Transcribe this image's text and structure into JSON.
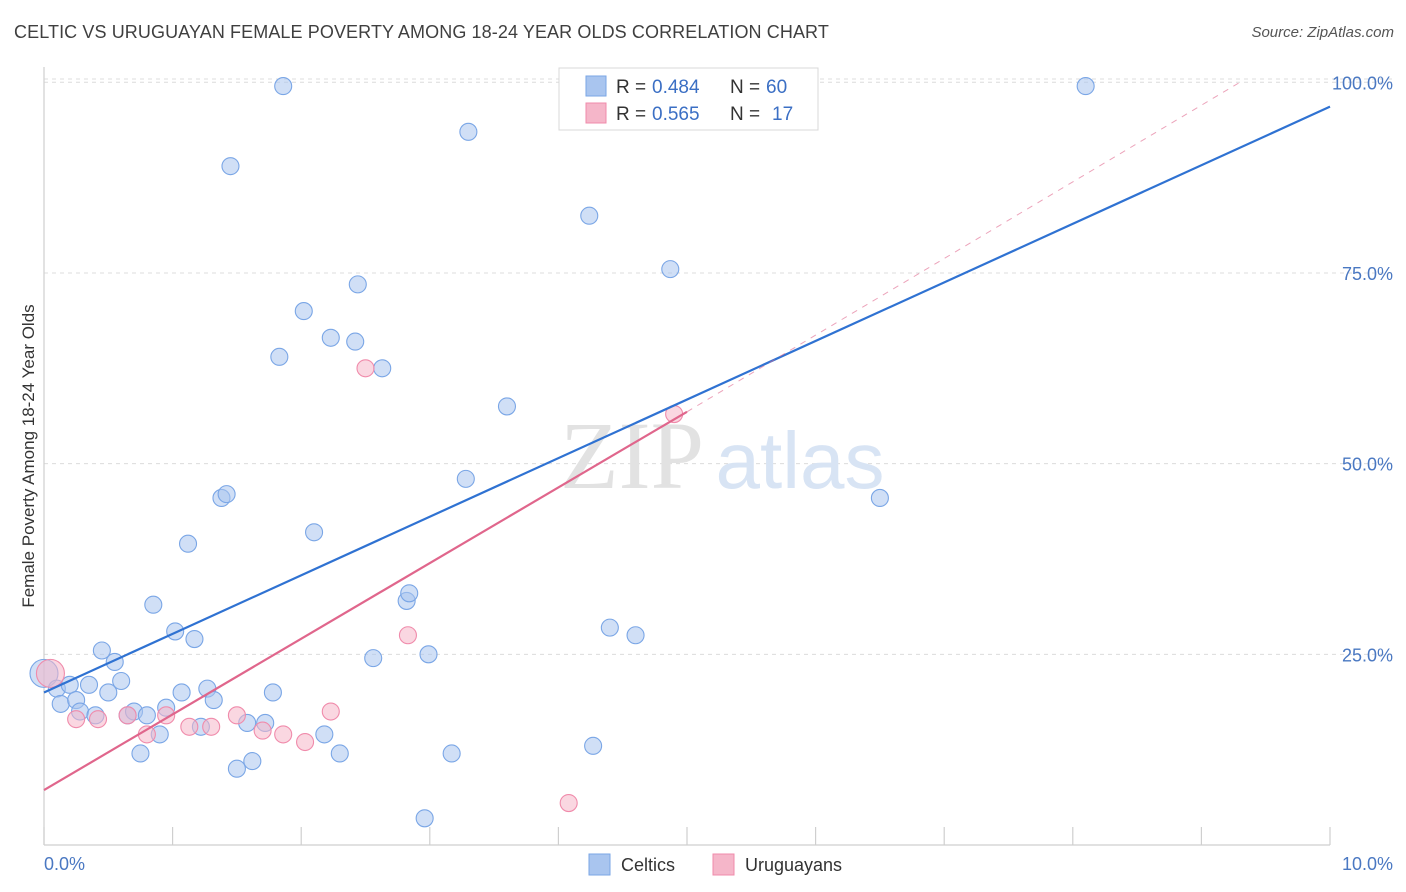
{
  "header": {
    "title": "CELTIC VS URUGUAYAN FEMALE POVERTY AMONG 18-24 YEAR OLDS CORRELATION CHART",
    "source": "Source: ZipAtlas.com"
  },
  "watermark": {
    "zip": "ZIP",
    "atlas": "atlas"
  },
  "legend_box": {
    "rows": [
      {
        "r_label": "R = ",
        "r_value": "0.484",
        "n_label": "N = ",
        "n_value": "60",
        "color": "#a9c5ef"
      },
      {
        "r_label": "R = ",
        "r_value": "0.565",
        "n_label": "N = ",
        "n_value": "17",
        "color": "#f5b6c9"
      }
    ]
  },
  "bottom_legend": [
    {
      "name": "Celtics",
      "color": "#a9c5ef"
    },
    {
      "name": "Uruguayans",
      "color": "#f5b6c9"
    }
  ],
  "chart_data": {
    "type": "scatter",
    "title": "CELTIC VS URUGUAYAN FEMALE POVERTY AMONG 18-24 YEAR OLDS CORRELATION CHART",
    "xlabel": "",
    "ylabel": "Female Poverty Among 18-24 Year Olds",
    "xlim": [
      0,
      10
    ],
    "ylim": [
      0,
      102
    ],
    "x_ticks": [
      {
        "value": 0,
        "label": "0.0%"
      },
      {
        "value": 10,
        "label": "10.0%"
      }
    ],
    "y_ticks": [
      {
        "value": 25,
        "label": "25.0%"
      },
      {
        "value": 50,
        "label": "50.0%"
      },
      {
        "value": 75,
        "label": "75.0%"
      },
      {
        "value": 100,
        "label": "100.0%"
      }
    ],
    "grid": "horizontal dashed",
    "legend_position": "top-center",
    "series": [
      {
        "name": "Celtics",
        "color": "#7aa6e6",
        "fill": "#a9c5ef",
        "trend_color": "#2f72d2",
        "trendline": {
          "x": [
            0,
            10
          ],
          "y": [
            20.0,
            96.8
          ]
        },
        "points": [
          {
            "x": 0.0,
            "y": 22.5
          },
          {
            "x": 0.1,
            "y": 20.5
          },
          {
            "x": 0.13,
            "y": 18.5
          },
          {
            "x": 0.2,
            "y": 21.0
          },
          {
            "x": 0.25,
            "y": 19.0
          },
          {
            "x": 0.28,
            "y": 17.5
          },
          {
            "x": 0.35,
            "y": 21.0
          },
          {
            "x": 0.4,
            "y": 17.0
          },
          {
            "x": 0.45,
            "y": 25.5
          },
          {
            "x": 0.5,
            "y": 20.0
          },
          {
            "x": 0.55,
            "y": 24.0
          },
          {
            "x": 0.6,
            "y": 21.5
          },
          {
            "x": 0.65,
            "y": 17.0
          },
          {
            "x": 0.7,
            "y": 17.5
          },
          {
            "x": 0.75,
            "y": 12.0
          },
          {
            "x": 0.8,
            "y": 17.0
          },
          {
            "x": 0.85,
            "y": 31.5
          },
          {
            "x": 0.9,
            "y": 14.5
          },
          {
            "x": 0.95,
            "y": 18.0
          },
          {
            "x": 1.02,
            "y": 28.0
          },
          {
            "x": 1.07,
            "y": 20.0
          },
          {
            "x": 1.12,
            "y": 39.5
          },
          {
            "x": 1.17,
            "y": 27.0
          },
          {
            "x": 1.22,
            "y": 15.5
          },
          {
            "x": 1.27,
            "y": 20.5
          },
          {
            "x": 1.32,
            "y": 19.0
          },
          {
            "x": 1.38,
            "y": 45.5
          },
          {
            "x": 1.42,
            "y": 46.0
          },
          {
            "x": 1.45,
            "y": 89.0
          },
          {
            "x": 1.5,
            "y": 10.0
          },
          {
            "x": 1.58,
            "y": 16.0
          },
          {
            "x": 1.62,
            "y": 11.0
          },
          {
            "x": 1.72,
            "y": 16.0
          },
          {
            "x": 1.78,
            "y": 20.0
          },
          {
            "x": 1.83,
            "y": 64.0
          },
          {
            "x": 1.86,
            "y": 99.5
          },
          {
            "x": 2.02,
            "y": 70.0
          },
          {
            "x": 2.1,
            "y": 41.0
          },
          {
            "x": 2.18,
            "y": 14.5
          },
          {
            "x": 2.23,
            "y": 66.5
          },
          {
            "x": 2.3,
            "y": 12.0
          },
          {
            "x": 2.42,
            "y": 66.0
          },
          {
            "x": 2.44,
            "y": 73.5
          },
          {
            "x": 2.56,
            "y": 24.5
          },
          {
            "x": 2.63,
            "y": 62.5
          },
          {
            "x": 2.82,
            "y": 32.0
          },
          {
            "x": 2.84,
            "y": 33.0
          },
          {
            "x": 2.96,
            "y": 3.5
          },
          {
            "x": 2.99,
            "y": 25.0
          },
          {
            "x": 3.17,
            "y": 12.0
          },
          {
            "x": 3.28,
            "y": 48.0
          },
          {
            "x": 3.3,
            "y": 93.5
          },
          {
            "x": 3.6,
            "y": 57.5
          },
          {
            "x": 4.24,
            "y": 82.5
          },
          {
            "x": 4.27,
            "y": 13.0
          },
          {
            "x": 4.4,
            "y": 28.5
          },
          {
            "x": 4.6,
            "y": 27.5
          },
          {
            "x": 4.87,
            "y": 75.5
          },
          {
            "x": 6.5,
            "y": 45.5
          },
          {
            "x": 8.1,
            "y": 99.5
          }
        ]
      },
      {
        "name": "Uruguayans",
        "color": "#f08bab",
        "fill": "#f5b6c9",
        "trend_color": "#e0668c",
        "trendline": {
          "x": [
            0,
            5.0
          ],
          "y": [
            7.2,
            56.8
          ]
        },
        "trendline_extension": {
          "x": [
            5.0,
            9.3
          ],
          "y": [
            56.8,
            100.0
          ]
        },
        "points": [
          {
            "x": 0.05,
            "y": 22.5
          },
          {
            "x": 0.25,
            "y": 16.5
          },
          {
            "x": 0.42,
            "y": 16.5
          },
          {
            "x": 0.65,
            "y": 17.0
          },
          {
            "x": 0.8,
            "y": 14.5
          },
          {
            "x": 0.95,
            "y": 17.0
          },
          {
            "x": 1.13,
            "y": 15.5
          },
          {
            "x": 1.3,
            "y": 15.5
          },
          {
            "x": 1.5,
            "y": 17.0
          },
          {
            "x": 1.7,
            "y": 15.0
          },
          {
            "x": 1.86,
            "y": 14.5
          },
          {
            "x": 2.03,
            "y": 13.5
          },
          {
            "x": 2.23,
            "y": 17.5
          },
          {
            "x": 2.5,
            "y": 62.5
          },
          {
            "x": 2.83,
            "y": 27.5
          },
          {
            "x": 4.08,
            "y": 5.5
          },
          {
            "x": 4.9,
            "y": 56.5
          }
        ]
      }
    ]
  }
}
